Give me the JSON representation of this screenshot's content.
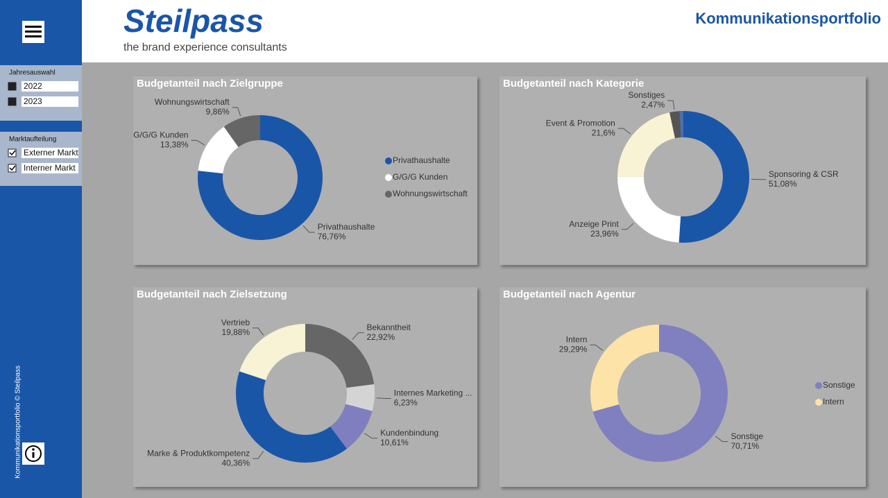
{
  "header": {
    "logo": "Steilpass",
    "tagline": "the brand experience consultants",
    "title": "Kommunikationsportfolio"
  },
  "sidebar": {
    "filters": [
      {
        "title": "Jahresauswahl",
        "items": [
          "2022",
          "2023"
        ]
      },
      {
        "title": "Marktaufteilung",
        "items": [
          "Externer Markt",
          "Interner Markt"
        ]
      }
    ],
    "footer": "Kommunikationsportfolio © Steilpass"
  },
  "chart_data": [
    {
      "type": "pie",
      "title": "Budgetanteil nach Zielgruppe",
      "legend": true,
      "categories": [
        "Privathaushalte",
        "G/G/G Kunden",
        "Wohnungswirtschaft"
      ],
      "values": [
        76.76,
        13.38,
        9.86
      ],
      "value_labels": [
        "76,76%",
        "13,38%",
        "9,86%"
      ],
      "colors": [
        "#1a56a8",
        "#ffffff",
        "#666666"
      ]
    },
    {
      "type": "pie",
      "title": "Budgetanteil nach Kategorie",
      "legend": false,
      "categories": [
        "Sponsoring & CSR",
        "Anzeige Print",
        "Event & Promotion",
        "Sonstiges",
        null
      ],
      "values": [
        51.08,
        23.96,
        21.6,
        2.47,
        0.89
      ],
      "value_labels": [
        "51,08%",
        "23,96%",
        "21,6%",
        "2,47%",
        null
      ],
      "colors": [
        "#1a56a8",
        "#ffffff",
        "#f7f3d4",
        "#555555",
        "#4a6fb0"
      ]
    },
    {
      "type": "pie",
      "title": "Budgetanteil nach Zielsetzung",
      "legend": false,
      "categories": [
        "Bekanntheit",
        "Internes Marketing ...",
        "Kundenbindung",
        "Marke & Produktkompetenz",
        "Vertrieb"
      ],
      "values": [
        22.92,
        6.23,
        10.61,
        40.36,
        19.88
      ],
      "value_labels": [
        "22,92%",
        "6,23%",
        "10,61%",
        "40,36%",
        "19,88%"
      ],
      "colors": [
        "#666666",
        "#d4d4d4",
        "#7f7fbf",
        "#1a56a8",
        "#f7f3d4"
      ]
    },
    {
      "type": "pie",
      "title": "Budgetanteil nach Agentur",
      "legend": true,
      "categories": [
        "Sonstige",
        "Intern"
      ],
      "values": [
        70.71,
        29.29
      ],
      "value_labels": [
        "70,71%",
        "29,29%"
      ],
      "colors": [
        "#8080c0",
        "#fde3a7"
      ]
    }
  ]
}
